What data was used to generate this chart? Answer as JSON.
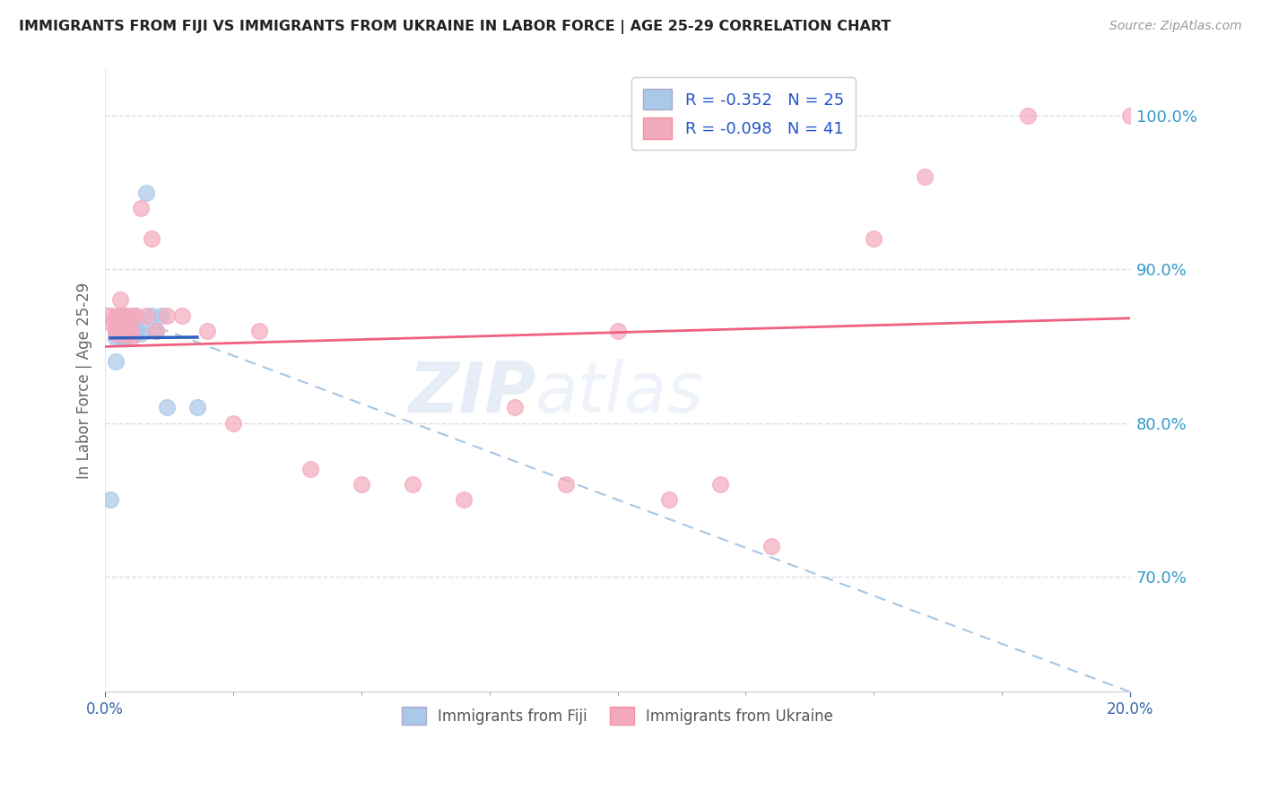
{
  "title": "IMMIGRANTS FROM FIJI VS IMMIGRANTS FROM UKRAINE IN LABOR FORCE | AGE 25-29 CORRELATION CHART",
  "source": "Source: ZipAtlas.com",
  "ylabel": "In Labor Force | Age 25-29",
  "fiji_color": "#aac8e8",
  "ukraine_color": "#f4aabe",
  "fiji_line_color": "#3060c0",
  "ukraine_line_color": "#f06080",
  "dashed_line_color": "#99bbdd",
  "R_fiji": -0.352,
  "N_fiji": 25,
  "R_ukraine": -0.098,
  "N_ukraine": 41,
  "fiji_x": [
    0.001,
    0.002,
    0.002,
    0.002,
    0.003,
    0.003,
    0.003,
    0.004,
    0.004,
    0.004,
    0.005,
    0.005,
    0.005,
    0.005,
    0.006,
    0.006,
    0.006,
    0.007,
    0.007,
    0.008,
    0.009,
    0.01,
    0.011,
    0.012,
    0.018
  ],
  "fiji_y": [
    0.75,
    0.84,
    0.855,
    0.86,
    0.87,
    0.855,
    0.855,
    0.855,
    0.855,
    0.86,
    0.86,
    0.865,
    0.865,
    0.86,
    0.87,
    0.862,
    0.858,
    0.862,
    0.858,
    0.95,
    0.87,
    0.86,
    0.87,
    0.81,
    0.81
  ],
  "ukraine_x": [
    0.001,
    0.001,
    0.002,
    0.002,
    0.002,
    0.003,
    0.003,
    0.003,
    0.003,
    0.004,
    0.004,
    0.004,
    0.004,
    0.005,
    0.005,
    0.005,
    0.005,
    0.006,
    0.007,
    0.008,
    0.009,
    0.01,
    0.012,
    0.015,
    0.02,
    0.025,
    0.03,
    0.04,
    0.05,
    0.06,
    0.07,
    0.08,
    0.09,
    0.1,
    0.11,
    0.12,
    0.13,
    0.15,
    0.16,
    0.18,
    0.2
  ],
  "ukraine_y": [
    0.87,
    0.865,
    0.87,
    0.862,
    0.858,
    0.88,
    0.87,
    0.86,
    0.858,
    0.87,
    0.86,
    0.87,
    0.858,
    0.87,
    0.862,
    0.858,
    0.855,
    0.87,
    0.94,
    0.87,
    0.92,
    0.86,
    0.87,
    0.87,
    0.86,
    0.8,
    0.86,
    0.77,
    0.76,
    0.76,
    0.75,
    0.81,
    0.76,
    0.86,
    0.75,
    0.76,
    0.72,
    0.92,
    0.96,
    1.0,
    1.0
  ],
  "watermark_top": "ZIP",
  "watermark_bot": "atlas",
  "background_color": "#ffffff",
  "grid_color": "#d8d8e8",
  "title_color": "#222222",
  "right_axis_color": "#3399cc",
  "legend_text_color": "#2255cc",
  "bottom_label_color": "#555555",
  "xlim": [
    0.0,
    0.2
  ],
  "ylim": [
    0.625,
    1.03
  ],
  "yticks": [
    0.7,
    0.8,
    0.9,
    1.0
  ],
  "xticks_show": [
    0.0,
    0.2
  ],
  "xticks_minor": [
    0.025,
    0.05,
    0.075,
    0.1,
    0.125,
    0.15,
    0.175
  ]
}
